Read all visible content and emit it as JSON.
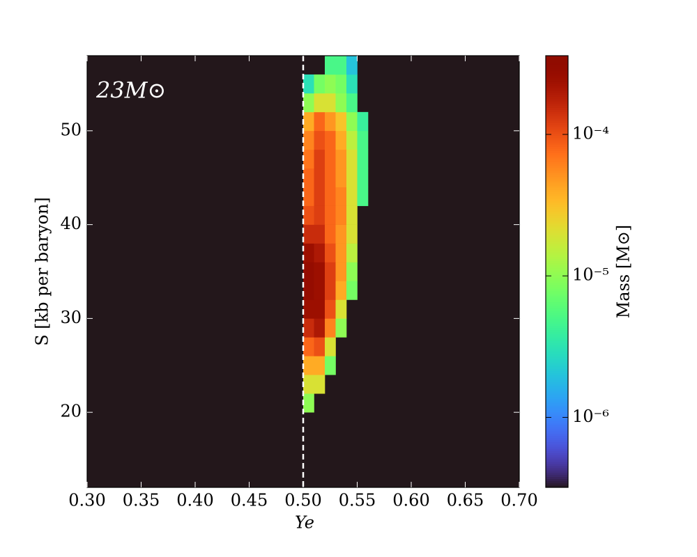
{
  "chart_data": {
    "type": "heatmap",
    "annotation": "23M⊙",
    "xlabel": "Ye",
    "ylabel": "S [kb per baryon]",
    "xlim": [
      0.3,
      0.7
    ],
    "xticks": [
      {
        "value": 0.3,
        "label": "0.30"
      },
      {
        "value": 0.35,
        "label": "0.35"
      },
      {
        "value": 0.4,
        "label": "0.40"
      },
      {
        "value": 0.45,
        "label": "0.45"
      },
      {
        "value": 0.5,
        "label": "0.50"
      },
      {
        "value": 0.55,
        "label": "0.55"
      },
      {
        "value": 0.6,
        "label": "0.60"
      },
      {
        "value": 0.65,
        "label": "0.65"
      },
      {
        "value": 0.7,
        "label": "0.70"
      }
    ],
    "ylim": [
      12,
      58
    ],
    "yticks": [
      20,
      30,
      40,
      50
    ],
    "reference_line": {
      "x": 0.5,
      "color": "#ffffff"
    },
    "colormap": "turbo",
    "colorbar": {
      "label": "Mass [M⊙]",
      "log": true,
      "lim": [
        3.2e-07,
        0.00036
      ],
      "ticks": [
        {
          "value": 0.0001,
          "label": "10⁻⁴"
        },
        {
          "value": 1e-05,
          "label": "10⁻⁵"
        },
        {
          "value": 1e-06,
          "label": "10⁻⁶"
        }
      ]
    },
    "xedges": [
      0.5,
      0.51,
      0.52,
      0.53,
      0.54,
      0.55,
      0.56
    ],
    "yedges": [
      20,
      22,
      24,
      26,
      28,
      30,
      32,
      34,
      36,
      38,
      40,
      42,
      44,
      46,
      48,
      50,
      52,
      54,
      56,
      58
    ],
    "z": [
      [
        1e-05,
        null,
        null,
        null,
        null,
        null
      ],
      [
        2e-05,
        2e-05,
        null,
        null,
        null,
        null
      ],
      [
        4e-05,
        4e-05,
        8e-06,
        null,
        null,
        null
      ],
      [
        8e-05,
        0.0001,
        2e-05,
        null,
        null,
        null
      ],
      [
        0.00015,
        0.0002,
        6e-05,
        1e-05,
        null,
        null
      ],
      [
        0.00025,
        0.00025,
        0.0001,
        2e-05,
        null,
        null
      ],
      [
        0.00028,
        0.00025,
        0.00012,
        4e-05,
        8e-06,
        null
      ],
      [
        0.00028,
        0.00025,
        0.00012,
        5e-05,
        1e-05,
        null
      ],
      [
        0.00025,
        0.0002,
        0.0001,
        5e-05,
        1.5e-05,
        null
      ],
      [
        0.00015,
        0.00015,
        8e-05,
        5e-05,
        2e-05,
        null
      ],
      [
        0.0001,
        0.00012,
        8e-05,
        6e-05,
        2e-05,
        null
      ],
      [
        8e-05,
        0.00012,
        8e-05,
        6e-05,
        2e-05,
        5e-06
      ],
      [
        8e-05,
        0.00012,
        8e-05,
        5e-05,
        2e-05,
        5e-06
      ],
      [
        7e-05,
        0.00012,
        8e-05,
        5e-05,
        2e-05,
        5e-06
      ],
      [
        6e-05,
        0.0001,
        8e-05,
        4e-05,
        1.5e-05,
        5e-06
      ],
      [
        4e-05,
        8e-05,
        5e-05,
        3e-05,
        1e-05,
        4e-06
      ],
      [
        1e-05,
        2e-05,
        2e-05,
        1e-05,
        5e-06,
        null
      ],
      [
        3e-06,
        8e-06,
        1e-05,
        8e-06,
        3e-06,
        null
      ],
      [
        null,
        null,
        5e-06,
        5e-06,
        2e-06,
        null
      ]
    ]
  }
}
